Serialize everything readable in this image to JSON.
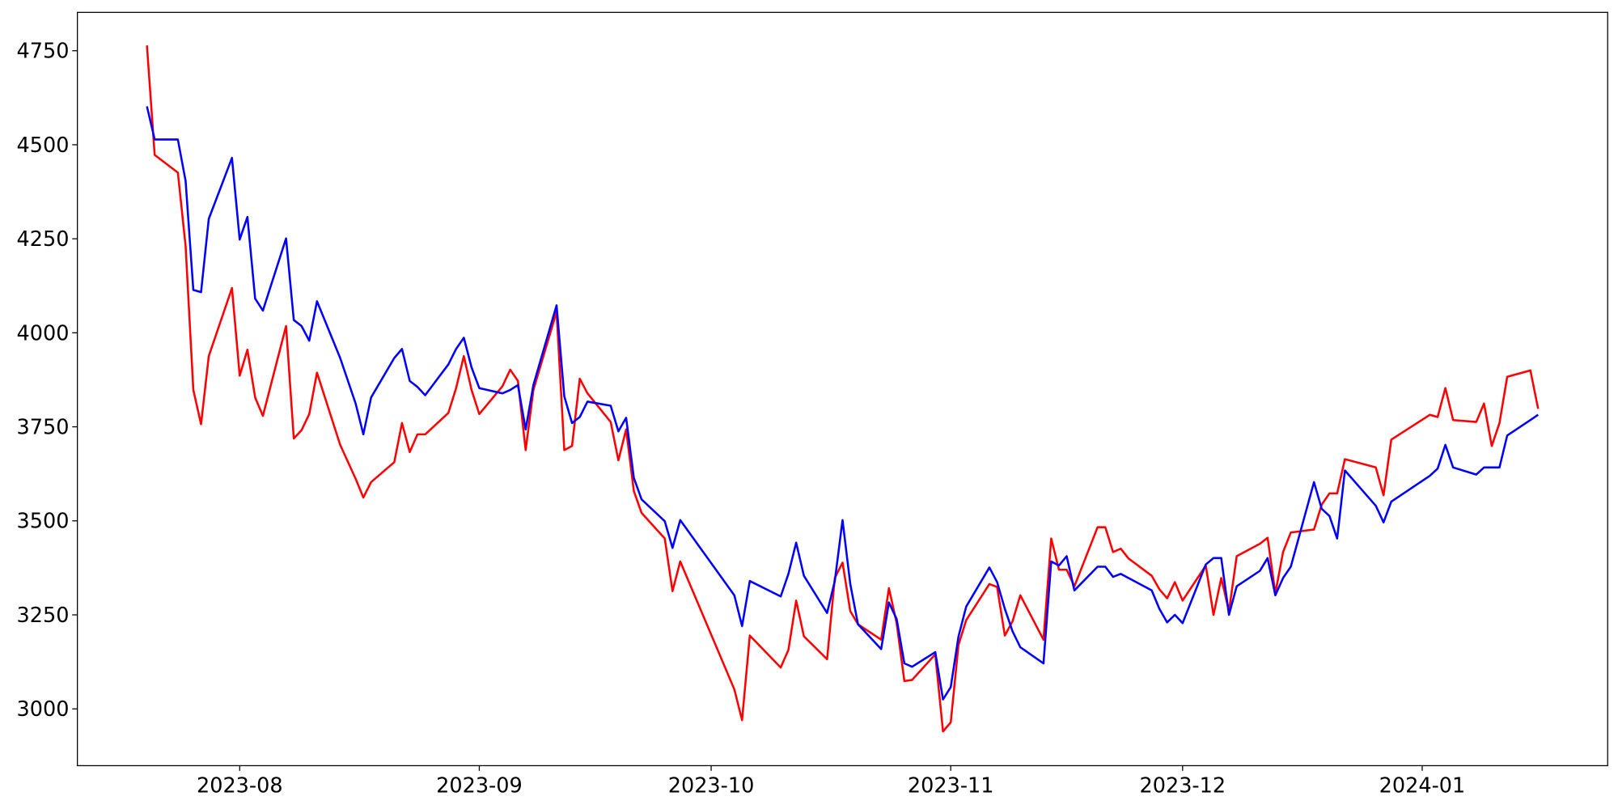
{
  "chart_data": {
    "type": "line",
    "x": [
      "2023-07-20",
      "2023-07-21",
      "2023-07-24",
      "2023-07-25",
      "2023-07-26",
      "2023-07-27",
      "2023-07-28",
      "2023-07-31",
      "2023-08-01",
      "2023-08-02",
      "2023-08-03",
      "2023-08-04",
      "2023-08-07",
      "2023-08-08",
      "2023-08-09",
      "2023-08-10",
      "2023-08-11",
      "2023-08-14",
      "2023-08-16",
      "2023-08-17",
      "2023-08-18",
      "2023-08-21",
      "2023-08-22",
      "2023-08-23",
      "2023-08-24",
      "2023-08-25",
      "2023-08-28",
      "2023-08-29",
      "2023-08-30",
      "2023-08-31",
      "2023-09-01",
      "2023-09-04",
      "2023-09-05",
      "2023-09-06",
      "2023-09-07",
      "2023-09-08",
      "2023-09-11",
      "2023-09-12",
      "2023-09-13",
      "2023-09-14",
      "2023-09-15",
      "2023-09-18",
      "2023-09-19",
      "2023-09-20",
      "2023-09-21",
      "2023-09-22",
      "2023-09-25",
      "2023-09-26",
      "2023-09-27",
      "2023-10-04",
      "2023-10-05",
      "2023-10-06",
      "2023-10-10",
      "2023-10-11",
      "2023-10-12",
      "2023-10-13",
      "2023-10-16",
      "2023-10-17",
      "2023-10-18",
      "2023-10-19",
      "2023-10-20",
      "2023-10-23",
      "2023-10-24",
      "2023-10-25",
      "2023-10-26",
      "2023-10-27",
      "2023-10-30",
      "2023-10-31",
      "2023-11-01",
      "2023-11-02",
      "2023-11-03",
      "2023-11-06",
      "2023-11-07",
      "2023-11-08",
      "2023-11-09",
      "2023-11-10",
      "2023-11-13",
      "2023-11-14",
      "2023-11-15",
      "2023-11-16",
      "2023-11-17",
      "2023-11-20",
      "2023-11-21",
      "2023-11-22",
      "2023-11-23",
      "2023-11-24",
      "2023-11-27",
      "2023-11-28",
      "2023-11-29",
      "2023-11-30",
      "2023-12-01",
      "2023-12-04",
      "2023-12-05",
      "2023-12-06",
      "2023-12-07",
      "2023-12-08",
      "2023-12-11",
      "2023-12-12",
      "2023-12-13",
      "2023-12-14",
      "2023-12-15",
      "2023-12-18",
      "2023-12-19",
      "2023-12-20",
      "2023-12-21",
      "2023-12-22",
      "2023-12-26",
      "2023-12-27",
      "2023-12-28",
      "2024-01-02",
      "2024-01-03",
      "2024-01-04",
      "2024-01-05",
      "2024-01-08",
      "2024-01-09",
      "2024-01-10",
      "2024-01-11",
      "2024-01-12",
      "2024-01-15",
      "2024-01-16"
    ],
    "series": [
      {
        "color": "#ff0000",
        "values": [
          4764,
          4473,
          4426,
          4231,
          3848,
          3757,
          3938,
          4119,
          3886,
          3955,
          3828,
          3779,
          4018,
          3719,
          3741,
          3784,
          3894,
          3702,
          3612,
          3562,
          3603,
          3656,
          3760,
          3683,
          3730,
          3730,
          3787,
          3853,
          3938,
          3848,
          3784,
          3858,
          3902,
          3872,
          3688,
          3848,
          4056,
          3688,
          3699,
          3878,
          3839,
          3763,
          3661,
          3743,
          3579,
          3521,
          3453,
          3313,
          3392,
          3052,
          2970,
          3195,
          3110,
          3157,
          3288,
          3193,
          3132,
          3348,
          3389,
          3260,
          3225,
          3184,
          3321,
          3228,
          3074,
          3077,
          3145,
          2940,
          2964,
          3170,
          3236,
          3332,
          3324,
          3195,
          3233,
          3302,
          3184,
          3453,
          3370,
          3370,
          3326,
          3483,
          3483,
          3417,
          3426,
          3400,
          3354,
          3318,
          3294,
          3337,
          3288,
          3381,
          3250,
          3348,
          3260,
          3406,
          3439,
          3455,
          3307,
          3417,
          3469,
          3477,
          3543,
          3573,
          3573,
          3664,
          3642,
          3568,
          3716,
          3782,
          3776,
          3853,
          3768,
          3763,
          3812,
          3699,
          3760,
          3883,
          3900,
          3798
        ]
      },
      {
        "color": "#0000ff",
        "values": [
          4602,
          4514,
          4514,
          4404,
          4114,
          4108,
          4303,
          4465,
          4248,
          4308,
          4091,
          4059,
          4251,
          4034,
          4018,
          3979,
          4084,
          3933,
          3812,
          3730,
          3828,
          3933,
          3957,
          3872,
          3856,
          3834,
          3916,
          3957,
          3987,
          3908,
          3853,
          3839,
          3848,
          3861,
          3743,
          3861,
          4073,
          3831,
          3760,
          3776,
          3817,
          3806,
          3738,
          3774,
          3614,
          3557,
          3499,
          3428,
          3502,
          3302,
          3220,
          3340,
          3299,
          3359,
          3442,
          3354,
          3255,
          3340,
          3502,
          3332,
          3225,
          3159,
          3283,
          3239,
          3121,
          3112,
          3151,
          3025,
          3058,
          3192,
          3272,
          3376,
          3337,
          3266,
          3206,
          3164,
          3121,
          3392,
          3381,
          3406,
          3315,
          3378,
          3378,
          3351,
          3359,
          3348,
          3315,
          3266,
          3230,
          3250,
          3228,
          3384,
          3401,
          3401,
          3250,
          3326,
          3367,
          3401,
          3302,
          3348,
          3378,
          3603,
          3532,
          3513,
          3453,
          3634,
          3540,
          3496,
          3551,
          3620,
          3639,
          3702,
          3642,
          3623,
          3642,
          3642,
          3642,
          3727,
          3768,
          3782
        ]
      }
    ],
    "xlim": [
      "2023-07-11",
      "2024-01-25"
    ],
    "xticks": [
      {
        "value": "2023-08-01",
        "label": "2023-08"
      },
      {
        "value": "2023-09-01",
        "label": "2023-09"
      },
      {
        "value": "2023-10-01",
        "label": "2023-10"
      },
      {
        "value": "2023-11-01",
        "label": "2023-11"
      },
      {
        "value": "2023-12-01",
        "label": "2023-12"
      },
      {
        "value": "2024-01-01",
        "label": "2024-01"
      }
    ],
    "ylim": [
      2849,
      4852
    ],
    "yticks": [
      3000,
      3250,
      3500,
      3750,
      4000,
      4250,
      4500,
      4750
    ],
    "grid": false
  }
}
